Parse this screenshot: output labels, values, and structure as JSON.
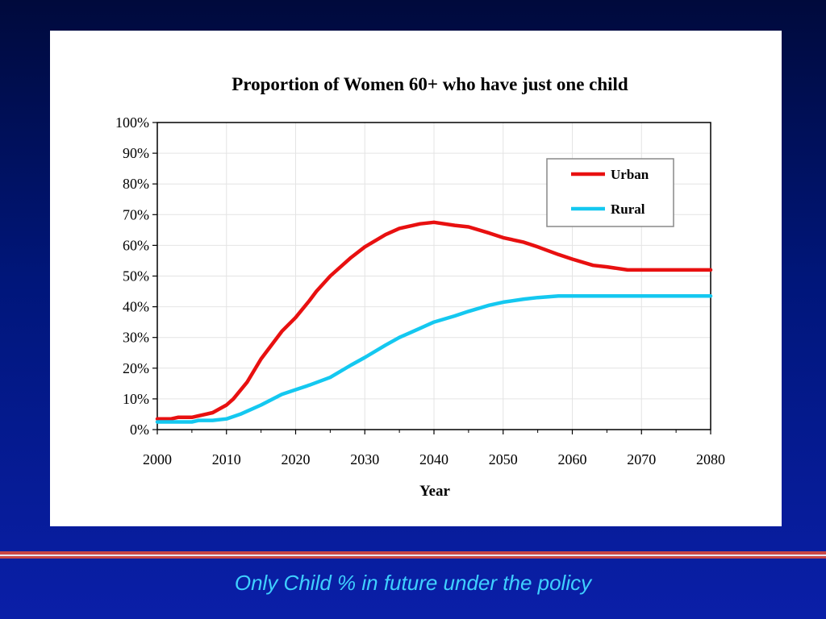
{
  "slide": {
    "caption": "Only Child % in future under the policy",
    "background_color": "#00167a",
    "caption_color": "#3fd0ff",
    "stripe_colors": [
      "#c84646",
      "#e8e8ff"
    ]
  },
  "chart_data": {
    "type": "line",
    "title": "Proportion of Women 60+ who have just one child",
    "xlabel": "Year",
    "ylabel": "",
    "xlim": [
      2000,
      2080
    ],
    "ylim": [
      0,
      100
    ],
    "x_ticks": [
      "2000",
      "2010",
      "2020",
      "2030",
      "2040",
      "2050",
      "2060",
      "2070",
      "2080"
    ],
    "y_ticks": [
      "0%",
      "10%",
      "20%",
      "30%",
      "40%",
      "50%",
      "60%",
      "70%",
      "80%",
      "90%",
      "100%"
    ],
    "grid": true,
    "legend_position": "top-right",
    "series": [
      {
        "name": "Urban",
        "color": "#e81010",
        "x": [
          2000,
          2002,
          2003,
          2005,
          2008,
          2010,
          2011,
          2013,
          2015,
          2018,
          2020,
          2022,
          2023,
          2025,
          2028,
          2030,
          2033,
          2035,
          2038,
          2040,
          2043,
          2045,
          2048,
          2050,
          2053,
          2055,
          2058,
          2060,
          2063,
          2065,
          2068,
          2070,
          2075,
          2080
        ],
        "values": [
          3.5,
          3.5,
          4,
          4,
          5.5,
          8,
          10,
          15.5,
          23,
          32,
          36.5,
          42,
          45,
          50,
          56,
          59.5,
          63.5,
          65.5,
          67,
          67.5,
          66.5,
          66,
          64,
          62.5,
          61,
          59.5,
          57,
          55.5,
          53.5,
          53,
          52,
          52,
          52,
          52
        ]
      },
      {
        "name": "Rural",
        "color": "#14c8f0",
        "x": [
          2000,
          2005,
          2006,
          2008,
          2010,
          2012,
          2015,
          2018,
          2020,
          2022,
          2025,
          2028,
          2030,
          2033,
          2035,
          2038,
          2040,
          2043,
          2045,
          2048,
          2050,
          2053,
          2055,
          2058,
          2060,
          2070,
          2080
        ],
        "values": [
          2.5,
          2.5,
          3,
          3,
          3.5,
          5,
          8,
          11.5,
          13,
          14.5,
          17,
          21,
          23.5,
          27.5,
          30,
          33,
          35,
          37,
          38.5,
          40.5,
          41.5,
          42.5,
          43,
          43.5,
          43.5,
          43.5,
          43.5
        ]
      }
    ]
  }
}
